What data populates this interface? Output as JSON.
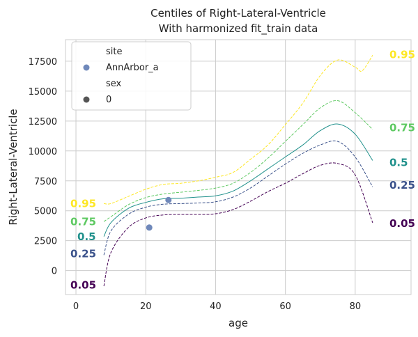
{
  "chart_data": {
    "type": "line",
    "title": "Centiles of Right-Lateral-Ventricle",
    "subtitle": "With harmonized fit_train data",
    "xlabel": "age",
    "ylabel": "Right-Lateral-Ventricle",
    "xlim": [
      -3,
      96
    ],
    "ylim": [
      -2000,
      19300
    ],
    "grid": true,
    "x_ticks": [
      {
        "value": 0,
        "label": "0"
      },
      {
        "value": 20,
        "label": "20"
      },
      {
        "value": 40,
        "label": "40"
      },
      {
        "value": 60,
        "label": "60"
      },
      {
        "value": 80,
        "label": "80"
      }
    ],
    "y_ticks": [
      {
        "value": 0,
        "label": "0"
      },
      {
        "value": 2500,
        "label": "2500"
      },
      {
        "value": 5000,
        "label": "5000"
      },
      {
        "value": 7500,
        "label": "7500"
      },
      {
        "value": 10000,
        "label": "10000"
      },
      {
        "value": 12500,
        "label": "12500"
      },
      {
        "value": 15000,
        "label": "15000"
      },
      {
        "value": 17500,
        "label": "17500"
      }
    ],
    "series": [
      {
        "name": "0.05",
        "color": "#440154",
        "dash": true,
        "x": [
          8,
          10,
          15,
          20,
          25,
          30,
          35,
          40,
          45,
          50,
          55,
          60,
          65,
          70,
          75,
          80,
          85
        ],
        "y": [
          -1300,
          1500,
          3600,
          4400,
          4650,
          4700,
          4700,
          4750,
          5100,
          5800,
          6600,
          7300,
          8100,
          8800,
          8950,
          8000,
          4000
        ],
        "start_label": {
          "x": 0,
          "y": -1150
        },
        "end_label": {
          "x": 91,
          "y": 4000
        }
      },
      {
        "name": "0.25",
        "color": "#3b528b",
        "dash": true,
        "x": [
          8,
          10,
          15,
          20,
          25,
          30,
          35,
          40,
          45,
          50,
          55,
          60,
          65,
          70,
          75,
          80,
          85
        ],
        "y": [
          1300,
          3300,
          4700,
          5300,
          5550,
          5600,
          5650,
          5750,
          6150,
          6900,
          7900,
          8900,
          9800,
          10500,
          10800,
          9500,
          7000
        ],
        "start_label": {
          "x": 0,
          "y": 1450
        },
        "end_label": {
          "x": 91,
          "y": 7200
        }
      },
      {
        "name": "0.5",
        "color": "#21918c",
        "dash": false,
        "x": [
          8,
          10,
          15,
          20,
          25,
          30,
          35,
          40,
          45,
          50,
          55,
          60,
          65,
          70,
          75,
          80,
          85
        ],
        "y": [
          2850,
          4000,
          5200,
          5700,
          6000,
          6050,
          6150,
          6250,
          6650,
          7500,
          8500,
          9500,
          10500,
          11700,
          12250,
          11400,
          9200
        ],
        "start_label": {
          "x": 2,
          "y": 2900
        },
        "end_label": {
          "x": 91,
          "y": 9100
        }
      },
      {
        "name": "0.75",
        "color": "#5ec962",
        "dash": true,
        "x": [
          8,
          10,
          15,
          20,
          25,
          30,
          35,
          40,
          45,
          50,
          55,
          60,
          65,
          70,
          75,
          80,
          85
        ],
        "y": [
          4100,
          4500,
          5500,
          6100,
          6400,
          6550,
          6700,
          6900,
          7300,
          8200,
          9400,
          10800,
          12200,
          13600,
          14200,
          13200,
          11800
        ],
        "start_label": {
          "x": 0,
          "y": 4150
        },
        "end_label": {
          "x": 91,
          "y": 12000
        }
      },
      {
        "name": "0.95",
        "color": "#fde725",
        "dash": true,
        "x": [
          8,
          10,
          15,
          20,
          25,
          30,
          35,
          40,
          45,
          50,
          55,
          60,
          65,
          70,
          75,
          80,
          82,
          85
        ],
        "y": [
          5600,
          5600,
          6200,
          6800,
          7200,
          7300,
          7500,
          7800,
          8200,
          9300,
          10500,
          12200,
          14000,
          16300,
          17600,
          17000,
          16700,
          18000
        ],
        "start_label": {
          "x": 0,
          "y": 5650
        },
        "end_label": {
          "x": 91,
          "y": 18100
        }
      }
    ],
    "scatter": {
      "name": "AnnArbor_a",
      "color": "#6f88ba",
      "points": [
        {
          "x": 21,
          "y": 3600
        },
        {
          "x": 26.5,
          "y": 5900
        }
      ]
    },
    "legend": {
      "placement": "upper-left",
      "entries": [
        {
          "kind": "header",
          "text": "site"
        },
        {
          "kind": "marker",
          "text": "AnnArbor_a",
          "color": "#6f88ba"
        },
        {
          "kind": "header",
          "text": "sex"
        },
        {
          "kind": "marker",
          "text": "0",
          "color": "#555555"
        }
      ]
    }
  }
}
